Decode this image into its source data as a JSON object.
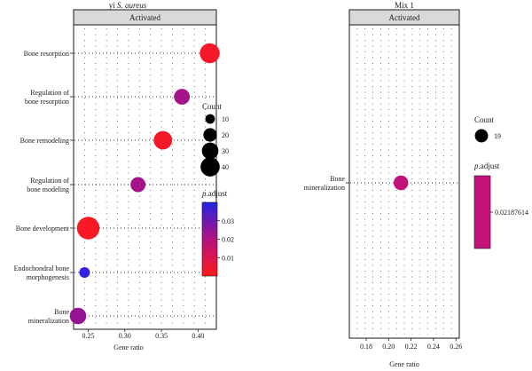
{
  "chart_data": [
    {
      "type": "scatter",
      "title_prefix": "yi",
      "title_species": "S. aureus",
      "strip_label": "Activated",
      "xlabel": "Gene ratio",
      "xlim": [
        0.23,
        0.425
      ],
      "xticks": [
        0.25,
        0.3,
        0.35,
        0.4
      ],
      "x_tick_labels": [
        "0.25",
        "0.30",
        "0.35",
        "0.40"
      ],
      "categories": [
        {
          "label": [
            "Bone resorption"
          ]
        },
        {
          "label": [
            "Regulation of",
            "bone resorption"
          ]
        },
        {
          "label": [
            "Bone remodeling"
          ]
        },
        {
          "label": [
            "Regulation of",
            "bone modeling"
          ]
        },
        {
          "label": [
            "Bone development"
          ]
        },
        {
          "label": [
            "Endochondral bone",
            "morphogenesis"
          ]
        },
        {
          "label": [
            "Bone",
            "mineralization"
          ]
        }
      ],
      "points": [
        {
          "category": 0,
          "gene_ratio": 0.416,
          "count": 35,
          "p_adjust": 0.003
        },
        {
          "category": 1,
          "gene_ratio": 0.378,
          "count": 22,
          "p_adjust": 0.022
        },
        {
          "category": 2,
          "gene_ratio": 0.352,
          "count": 30,
          "p_adjust": 0.003
        },
        {
          "category": 3,
          "gene_ratio": 0.318,
          "count": 20,
          "p_adjust": 0.022
        },
        {
          "category": 4,
          "gene_ratio": 0.25,
          "count": 45,
          "p_adjust": 0.002
        },
        {
          "category": 5,
          "gene_ratio": 0.245,
          "count": 10,
          "p_adjust": 0.038
        },
        {
          "category": 6,
          "gene_ratio": 0.236,
          "count": 24,
          "p_adjust": 0.024
        }
      ],
      "legend_count": {
        "title": "Count",
        "values": [
          10,
          20,
          30,
          40
        ],
        "labels": [
          "10",
          "20",
          "30",
          "40"
        ]
      },
      "legend_padjust": {
        "title_italic": "p",
        "title_rest": ".adjust",
        "range": [
          0.0,
          0.04
        ],
        "ticks": [
          0.01,
          0.02,
          0.03
        ],
        "tick_labels": [
          "0.01",
          "0.02",
          "0.03"
        ],
        "colors": [
          "#ff1a1a",
          "#b3127f",
          "#2323e6"
        ]
      }
    },
    {
      "type": "scatter",
      "title": "Mix 1",
      "strip_label": "Activated",
      "xlabel": "Gene ratio",
      "xlim": [
        0.165,
        0.263
      ],
      "xticks": [
        0.18,
        0.2,
        0.22,
        0.24,
        0.26
      ],
      "x_tick_labels": [
        "0.18",
        "0.20",
        "0.22",
        "0.24",
        "0.26"
      ],
      "categories": [
        {
          "label": [
            "Bone",
            "mineralization"
          ]
        }
      ],
      "points": [
        {
          "category": 0,
          "gene_ratio": 0.211,
          "count": 19,
          "p_adjust": 0.02187614
        }
      ],
      "legend_count": {
        "title": "Count",
        "values": [
          19
        ],
        "labels": [
          "19"
        ]
      },
      "legend_padjust": {
        "title_italic": "p",
        "title_rest": ".adjust",
        "value": 0.02187614,
        "tick_label": "0.02187614",
        "color": "#c2127a"
      }
    }
  ]
}
